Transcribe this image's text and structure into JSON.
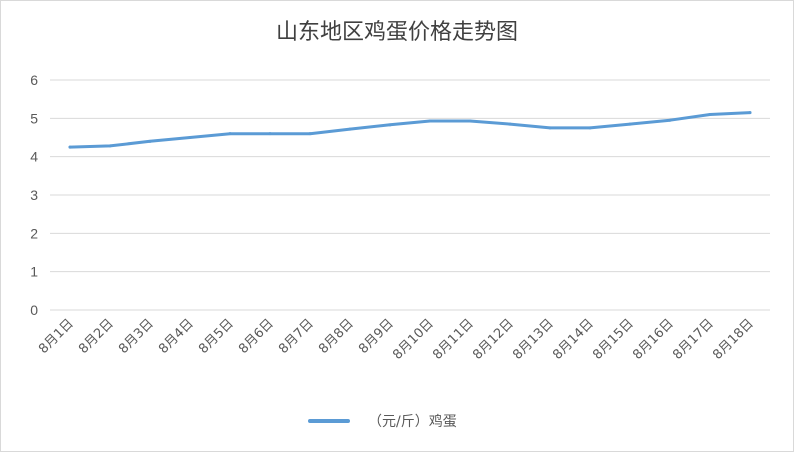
{
  "chart_data": {
    "type": "line",
    "title": "山东地区鸡蛋价格走势图",
    "categories": [
      "8月1日",
      "8月2日",
      "8月3日",
      "8月4日",
      "8月5日",
      "8月6日",
      "8月7日",
      "8月8日",
      "8月9日",
      "8月10日",
      "8月11日",
      "8月12日",
      "8月13日",
      "8月14日",
      "8月15日",
      "8月16日",
      "8月17日",
      "8月18日"
    ],
    "series": [
      {
        "name": "（元/斤）鸡蛋",
        "color": "#5b9bd5",
        "values": [
          4.25,
          4.28,
          4.4,
          4.5,
          4.6,
          4.6,
          4.6,
          4.72,
          4.83,
          4.93,
          4.93,
          4.85,
          4.75,
          4.75,
          4.85,
          4.95,
          5.1,
          5.15
        ]
      }
    ],
    "yticks": [
      "0",
      "1",
      "2",
      "3",
      "4",
      "5",
      "6"
    ],
    "ylim": [
      0,
      6
    ],
    "grid": true,
    "legend_position": "bottom"
  }
}
